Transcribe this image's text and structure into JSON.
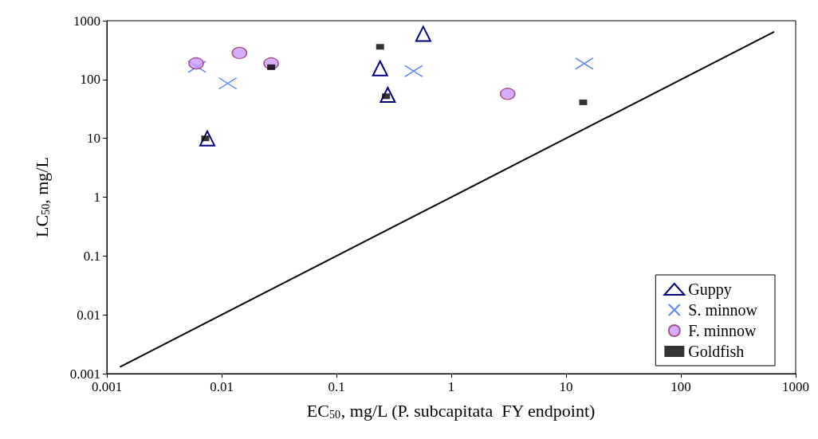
{
  "chart_data": {
    "type": "scatter",
    "xlabel": "EC$_{50}$, mg/L (P. subcapitata  FY endpoint)",
    "ylabel": "LC$_{50}$, mg/L",
    "log": "xy",
    "xlim": [
      0.001,
      1000
    ],
    "ylim": [
      0.001,
      1000
    ],
    "xticks": [
      0.001,
      0.01,
      0.1,
      1,
      10,
      100,
      1000
    ],
    "yticks": [
      0.001,
      0.01,
      0.1,
      1,
      10,
      100,
      1000
    ],
    "grid": false,
    "legend": "bottom right",
    "series": [
      {
        "name": "Guppy",
        "color": "#000080",
        "marker": "triangle",
        "x": [
          0.0075,
          0.24,
          0.28,
          0.57
        ],
        "values": [
          10,
          155,
          55,
          600
        ]
      },
      {
        "name": "S. minnow",
        "color": "#3366ff",
        "marker": "cross",
        "x": [
          0.0061,
          0.0113,
          0.47,
          14.4
        ],
        "values": [
          165,
          86,
          139,
          187
        ]
      },
      {
        "name": "F. minnow",
        "color": "#cc99ff",
        "marker": "circle",
        "x": [
          0.006,
          0.0143,
          0.027,
          3.1
        ],
        "values": [
          188,
          283,
          188,
          57
        ]
      },
      {
        "name": "Goldfish",
        "color": "#000000",
        "marker": "square",
        "x": [
          0.0072,
          0.027,
          0.24,
          0.27,
          14.1
        ],
        "values": [
          10,
          162,
          360,
          52,
          41
        ]
      },
      {
        "type": "line",
        "color": "#000000",
        "marker": "none",
        "x": [
          0.0013,
          650
        ],
        "values": [
          0.0013,
          650
        ]
      }
    ]
  }
}
